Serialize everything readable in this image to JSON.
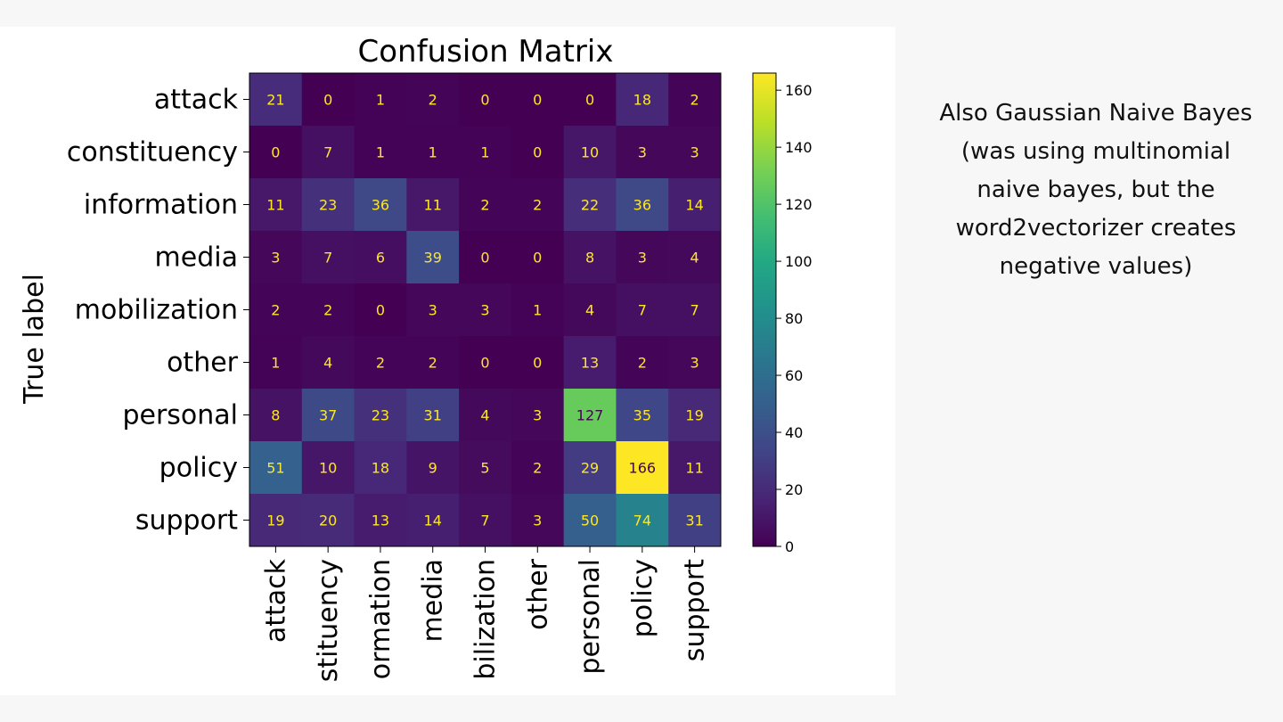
{
  "note": {
    "lines": [
      "Also Gaussian Naive Bayes",
      "(was using multinomial",
      "naive bayes, but the",
      "word2vectorizer creates",
      "negative values)"
    ]
  },
  "chart_data": {
    "type": "heatmap",
    "title": "Confusion Matrix",
    "ylabel": "True label",
    "xlabel": "",
    "row_labels": [
      "attack",
      "constituency",
      "information",
      "media",
      "mobilization",
      "other",
      "personal",
      "policy",
      "support"
    ],
    "col_labels": [
      "attack",
      "stituency",
      "ormation",
      "media",
      "bilization",
      "other",
      "personal",
      "policy",
      "support"
    ],
    "matrix": [
      [
        21,
        0,
        1,
        2,
        0,
        0,
        0,
        18,
        2
      ],
      [
        0,
        7,
        1,
        1,
        1,
        0,
        10,
        3,
        3
      ],
      [
        11,
        23,
        36,
        11,
        2,
        2,
        22,
        36,
        14
      ],
      [
        3,
        7,
        6,
        39,
        0,
        0,
        8,
        3,
        4
      ],
      [
        2,
        2,
        0,
        3,
        3,
        1,
        4,
        7,
        7
      ],
      [
        1,
        4,
        2,
        2,
        0,
        0,
        13,
        2,
        3
      ],
      [
        8,
        37,
        23,
        31,
        4,
        3,
        127,
        35,
        19
      ],
      [
        51,
        10,
        18,
        9,
        5,
        2,
        29,
        166,
        11
      ],
      [
        19,
        20,
        13,
        14,
        7,
        3,
        50,
        74,
        31
      ]
    ],
    "colorbar": {
      "colormap": "viridis",
      "range": [
        0,
        166
      ],
      "ticks": [
        0,
        20,
        40,
        60,
        80,
        100,
        120,
        140,
        160
      ]
    },
    "colors": {
      "cell_text_light": "#fde725",
      "cell_text_dark": "#440154",
      "axis": "#000000"
    }
  }
}
